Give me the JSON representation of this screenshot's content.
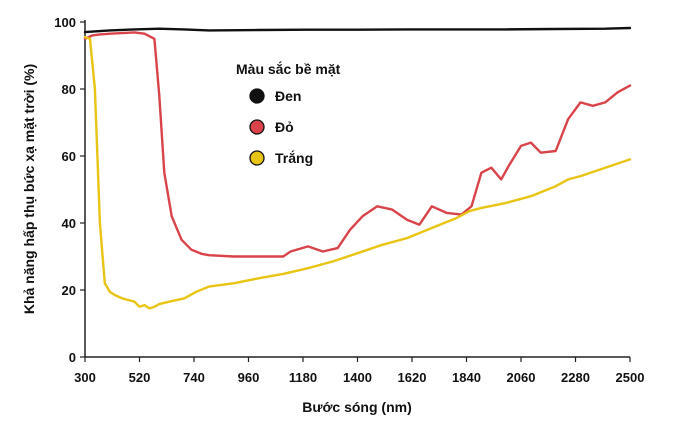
{
  "chart_data": {
    "type": "line",
    "xlabel": "Bước sóng (nm)",
    "ylabel": "Khả năng hấp thụ bức xạ mặt trời (%)",
    "xlim": [
      300,
      2500
    ],
    "ylim": [
      0,
      100
    ],
    "x_ticks": [
      "300",
      "520",
      "740",
      "960",
      "1180",
      "1400",
      "1620",
      "1840",
      "2060",
      "2280",
      "2500"
    ],
    "y_ticks": [
      "0",
      "20",
      "40",
      "60",
      "80",
      "100"
    ],
    "grid": false,
    "legend_title": "Màu sắc bề mặt",
    "legend_position": "top-center",
    "series": [
      {
        "name": "Đen",
        "color": "#111111",
        "x": [
          300,
          400,
          500,
          600,
          700,
          800,
          1000,
          1200,
          1400,
          1600,
          1800,
          2000,
          2200,
          2400,
          2500
        ],
        "y": [
          97,
          97.5,
          97.8,
          98,
          97.8,
          97.5,
          97.6,
          97.7,
          97.7,
          97.8,
          97.8,
          97.8,
          97.9,
          98,
          98.2
        ]
      },
      {
        "name": "Đỏ",
        "color": "#d9434a",
        "x": [
          300,
          330,
          360,
          400,
          450,
          500,
          540,
          580,
          600,
          620,
          650,
          690,
          730,
          770,
          800,
          900,
          1000,
          1100,
          1130,
          1200,
          1260,
          1320,
          1370,
          1420,
          1480,
          1540,
          1600,
          1650,
          1700,
          1760,
          1820,
          1860,
          1900,
          1940,
          1980,
          2010,
          2060,
          2100,
          2140,
          2200,
          2250,
          2300,
          2350,
          2400,
          2450,
          2500
        ],
        "y": [
          95,
          96,
          96.3,
          96.5,
          96.7,
          96.9,
          96.5,
          95,
          78,
          55,
          42,
          35,
          32,
          30.8,
          30.4,
          30,
          30,
          30,
          31.5,
          33,
          31.5,
          32.5,
          38,
          42,
          45,
          44,
          41,
          39.5,
          45,
          43,
          42.5,
          45,
          55,
          56.5,
          53,
          57,
          63,
          64,
          61,
          61.5,
          71,
          76,
          75,
          76,
          79,
          81
        ]
      },
      {
        "name": "Trắng",
        "color": "#e8c414",
        "x": [
          300,
          320,
          340,
          360,
          380,
          400,
          420,
          450,
          500,
          520,
          540,
          560,
          580,
          600,
          640,
          700,
          750,
          800,
          900,
          1000,
          1100,
          1200,
          1300,
          1400,
          1500,
          1600,
          1700,
          1800,
          1850,
          1900,
          2000,
          2100,
          2200,
          2250,
          2300,
          2400,
          2500
        ],
        "y": [
          95.5,
          95,
          80,
          40,
          22,
          19.5,
          18.5,
          17.5,
          16.5,
          15,
          15.5,
          14.5,
          15,
          15.8,
          16.5,
          17.5,
          19.5,
          21,
          22,
          23.5,
          24.8,
          26.5,
          28.5,
          31,
          33.5,
          35.5,
          38.5,
          41.5,
          43.5,
          44.5,
          46,
          48,
          51,
          53,
          54,
          56.5,
          59
        ]
      }
    ]
  }
}
